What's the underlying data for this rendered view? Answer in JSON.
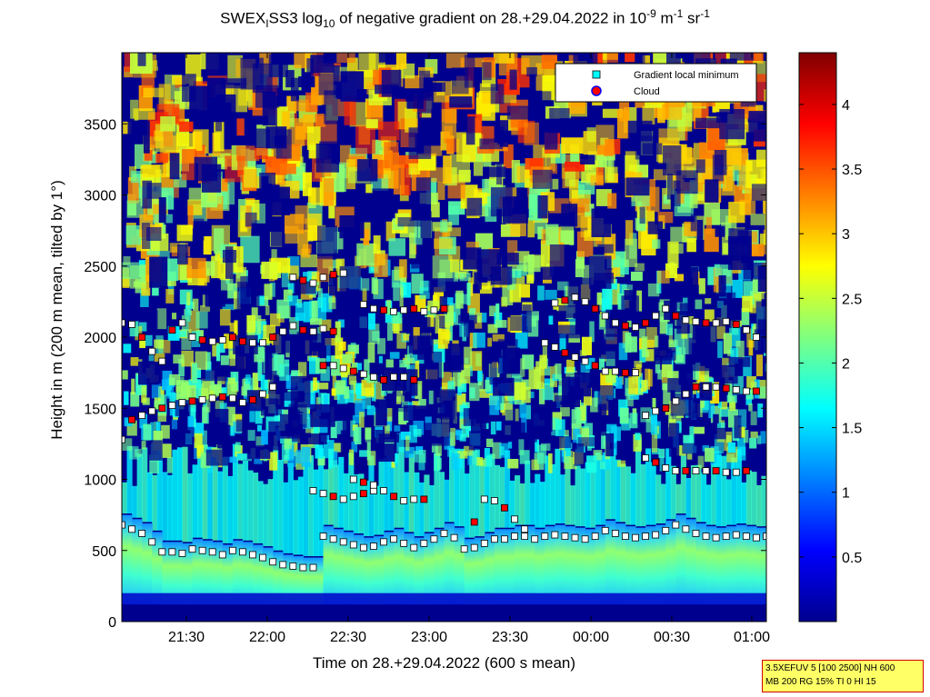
{
  "title": {
    "prefix": "SWEX",
    "sub1": "I",
    "mid": "SS3 log",
    "sub2": "10",
    "rest": " of negative gradient on 28.+29.04.2022 in 10",
    "sup1": "-9",
    "unit_m": " m",
    "sup2": "-1",
    "unit_sr": " sr",
    "sup3": "-1"
  },
  "info_box": {
    "line1": "3.5XEFUV 5 [100 2500] NH 600",
    "line2": "MB 200 RG 15% TI 0 HI 15"
  },
  "colors": {
    "background_dark": "#00008f",
    "marker_min": "#ffffff",
    "marker_cloud": "#ff0000",
    "marker_edge": "#000000",
    "legend_min_fill": "#00ffff",
    "legend_cloud_fill": "#ff0000"
  },
  "chart_data": {
    "type": "heatmap",
    "xlabel": "Time on 28.+29.04.2022 (600 s mean)",
    "ylabel": "Height in m (200 m mean, tilted by 1°)",
    "x_ticks": [
      "21:30",
      "22:00",
      "22:30",
      "23:00",
      "23:30",
      "00:00",
      "00:30",
      "01:00"
    ],
    "y_ticks": [
      "0",
      "500",
      "1000",
      "1500",
      "2000",
      "2500",
      "3000",
      "3500"
    ],
    "y_tick_values": [
      0,
      500,
      1000,
      1500,
      2000,
      2500,
      3000,
      3500
    ],
    "ylim": [
      0,
      4000
    ],
    "colorbar": {
      "ticks": [
        "0.5",
        "1",
        "1.5",
        "2",
        "2.5",
        "3",
        "3.5",
        "4"
      ],
      "tick_values": [
        0.5,
        1,
        1.5,
        2,
        2.5,
        3,
        3.5,
        4
      ],
      "range": [
        0,
        4.4
      ],
      "colormap": "jet"
    },
    "legend": {
      "placement": "top-right",
      "entries": [
        {
          "label": "Gradient local minimum",
          "marker": "square",
          "color": "#00ffff"
        },
        {
          "label": "Cloud",
          "marker": "circle",
          "color": "#ff0000"
        }
      ]
    },
    "layers": [
      {
        "name": "ground layer top",
        "points": [
          [
            0,
            680
          ],
          [
            2,
            650
          ],
          [
            4,
            620
          ],
          [
            6,
            560
          ],
          [
            8,
            490
          ],
          [
            10,
            490
          ],
          [
            12,
            480
          ],
          [
            14,
            510
          ],
          [
            16,
            500
          ],
          [
            18,
            490
          ],
          [
            20,
            470
          ],
          [
            22,
            500
          ],
          [
            24,
            490
          ],
          [
            26,
            470
          ],
          [
            28,
            450
          ],
          [
            30,
            420
          ],
          [
            32,
            400
          ],
          [
            34,
            390
          ],
          [
            36,
            380
          ],
          [
            38,
            380
          ],
          [
            40,
            600
          ],
          [
            42,
            580
          ],
          [
            44,
            560
          ],
          [
            46,
            540
          ],
          [
            48,
            520
          ],
          [
            50,
            530
          ],
          [
            52,
            560
          ],
          [
            54,
            580
          ],
          [
            56,
            550
          ],
          [
            58,
            520
          ],
          [
            60,
            550
          ],
          [
            62,
            580
          ],
          [
            64,
            620
          ],
          [
            66,
            590
          ],
          [
            68,
            510
          ],
          [
            70,
            520
          ],
          [
            72,
            550
          ],
          [
            74,
            580
          ],
          [
            76,
            580
          ],
          [
            78,
            600
          ],
          [
            80,
            600
          ],
          [
            82,
            580
          ],
          [
            84,
            600
          ],
          [
            86,
            610
          ],
          [
            88,
            600
          ],
          [
            90,
            590
          ],
          [
            92,
            580
          ],
          [
            94,
            600
          ],
          [
            96,
            640
          ],
          [
            98,
            620
          ],
          [
            100,
            600
          ],
          [
            102,
            590
          ],
          [
            104,
            600
          ],
          [
            106,
            610
          ],
          [
            108,
            640
          ],
          [
            110,
            680
          ],
          [
            112,
            650
          ],
          [
            114,
            620
          ],
          [
            116,
            600
          ],
          [
            118,
            590
          ],
          [
            120,
            600
          ],
          [
            122,
            610
          ],
          [
            124,
            600
          ],
          [
            126,
            590
          ],
          [
            128,
            600
          ]
        ]
      },
      {
        "name": "layer 2000",
        "points": [
          [
            0,
            2100
          ],
          [
            2,
            2090
          ],
          [
            4,
            2000
          ],
          [
            6,
            1900
          ],
          [
            8,
            1830
          ],
          [
            10,
            2050
          ],
          [
            12,
            2100
          ],
          [
            14,
            2000
          ],
          [
            16,
            1980
          ],
          [
            18,
            1970
          ],
          [
            20,
            1980
          ],
          [
            22,
            2000
          ]
        ]
      },
      {
        "name": "layer 1500",
        "points": [
          [
            0,
            1280
          ],
          [
            2,
            1420
          ],
          [
            4,
            1450
          ],
          [
            6,
            1480
          ],
          [
            8,
            1500
          ],
          [
            10,
            1520
          ],
          [
            12,
            1540
          ],
          [
            14,
            1550
          ],
          [
            16,
            1560
          ],
          [
            18,
            1570
          ],
          [
            20,
            1580
          ],
          [
            22,
            1570
          ],
          [
            24,
            1540
          ],
          [
            26,
            1560
          ],
          [
            28,
            1600
          ],
          [
            30,
            1650
          ]
        ]
      },
      {
        "name": "layer 1750",
        "points": [
          [
            40,
            1800
          ],
          [
            42,
            1800
          ],
          [
            44,
            1780
          ],
          [
            46,
            1760
          ],
          [
            48,
            1740
          ],
          [
            50,
            1720
          ],
          [
            52,
            1700
          ],
          [
            54,
            1720
          ],
          [
            56,
            1720
          ],
          [
            58,
            1700
          ]
        ]
      },
      {
        "name": "layer 2200",
        "points": [
          [
            48,
            2230
          ],
          [
            50,
            2200
          ],
          [
            52,
            2190
          ],
          [
            54,
            2180
          ],
          [
            56,
            2190
          ],
          [
            58,
            2200
          ],
          [
            60,
            2180
          ],
          [
            62,
            2190
          ],
          [
            64,
            2200
          ]
        ]
      },
      {
        "name": "layer 2400",
        "points": [
          [
            34,
            2420
          ],
          [
            36,
            2400
          ],
          [
            38,
            2380
          ],
          [
            40,
            2420
          ],
          [
            42,
            2440
          ],
          [
            44,
            2450
          ]
        ]
      },
      {
        "name": "layer 2050",
        "points": [
          [
            24,
            1970
          ],
          [
            26,
            1960
          ],
          [
            28,
            1960
          ],
          [
            30,
            2000
          ],
          [
            32,
            2040
          ],
          [
            34,
            2080
          ],
          [
            36,
            2050
          ],
          [
            38,
            2040
          ],
          [
            40,
            2060
          ],
          [
            42,
            2040
          ]
        ]
      },
      {
        "name": "layer 1950",
        "points": [
          [
            84,
            1960
          ],
          [
            86,
            1930
          ],
          [
            88,
            1890
          ],
          [
            90,
            1860
          ],
          [
            92,
            1830
          ],
          [
            94,
            1800
          ],
          [
            96,
            1760
          ],
          [
            98,
            1760
          ],
          [
            100,
            1750
          ],
          [
            102,
            1750
          ]
        ]
      },
      {
        "name": "layer 2250",
        "points": [
          [
            86,
            2240
          ],
          [
            88,
            2260
          ],
          [
            90,
            2280
          ],
          [
            92,
            2250
          ],
          [
            94,
            2200
          ],
          [
            96,
            2150
          ],
          [
            98,
            2100
          ],
          [
            100,
            2080
          ],
          [
            102,
            2070
          ]
        ]
      },
      {
        "name": "layer 2100",
        "points": [
          [
            104,
            2100
          ],
          [
            106,
            2150
          ],
          [
            108,
            2200
          ],
          [
            110,
            2150
          ],
          [
            112,
            2120
          ],
          [
            114,
            2110
          ],
          [
            116,
            2100
          ],
          [
            118,
            2100
          ],
          [
            120,
            2110
          ],
          [
            122,
            2090
          ],
          [
            124,
            2050
          ],
          [
            126,
            2000
          ]
        ]
      },
      {
        "name": "layer 1650",
        "points": [
          [
            104,
            1450
          ],
          [
            106,
            1480
          ],
          [
            108,
            1500
          ],
          [
            110,
            1550
          ],
          [
            112,
            1600
          ],
          [
            114,
            1650
          ],
          [
            116,
            1650
          ],
          [
            118,
            1650
          ],
          [
            120,
            1640
          ],
          [
            122,
            1630
          ],
          [
            124,
            1620
          ],
          [
            126,
            1620
          ]
        ]
      },
      {
        "name": "layer 1050",
        "points": [
          [
            104,
            1150
          ],
          [
            106,
            1120
          ],
          [
            108,
            1080
          ],
          [
            110,
            1060
          ],
          [
            112,
            1060
          ],
          [
            114,
            1060
          ],
          [
            116,
            1060
          ],
          [
            118,
            1060
          ],
          [
            120,
            1050
          ],
          [
            122,
            1050
          ],
          [
            124,
            1060
          ]
        ]
      },
      {
        "name": "layer 850",
        "points": [
          [
            70,
            700
          ],
          [
            72,
            860
          ],
          [
            74,
            850
          ],
          [
            76,
            800
          ],
          [
            78,
            720
          ],
          [
            80,
            650
          ]
        ]
      },
      {
        "name": "layer 900",
        "points": [
          [
            38,
            920
          ],
          [
            40,
            900
          ],
          [
            42,
            880
          ],
          [
            44,
            860
          ],
          [
            46,
            880
          ],
          [
            48,
            900
          ],
          [
            50,
            920
          ]
        ]
      },
      {
        "name": "layer 1100",
        "points": [
          [
            46,
            1000
          ],
          [
            48,
            980
          ],
          [
            50,
            960
          ],
          [
            52,
            920
          ],
          [
            54,
            880
          ],
          [
            56,
            850
          ],
          [
            58,
            860
          ],
          [
            60,
            860
          ]
        ]
      }
    ]
  }
}
